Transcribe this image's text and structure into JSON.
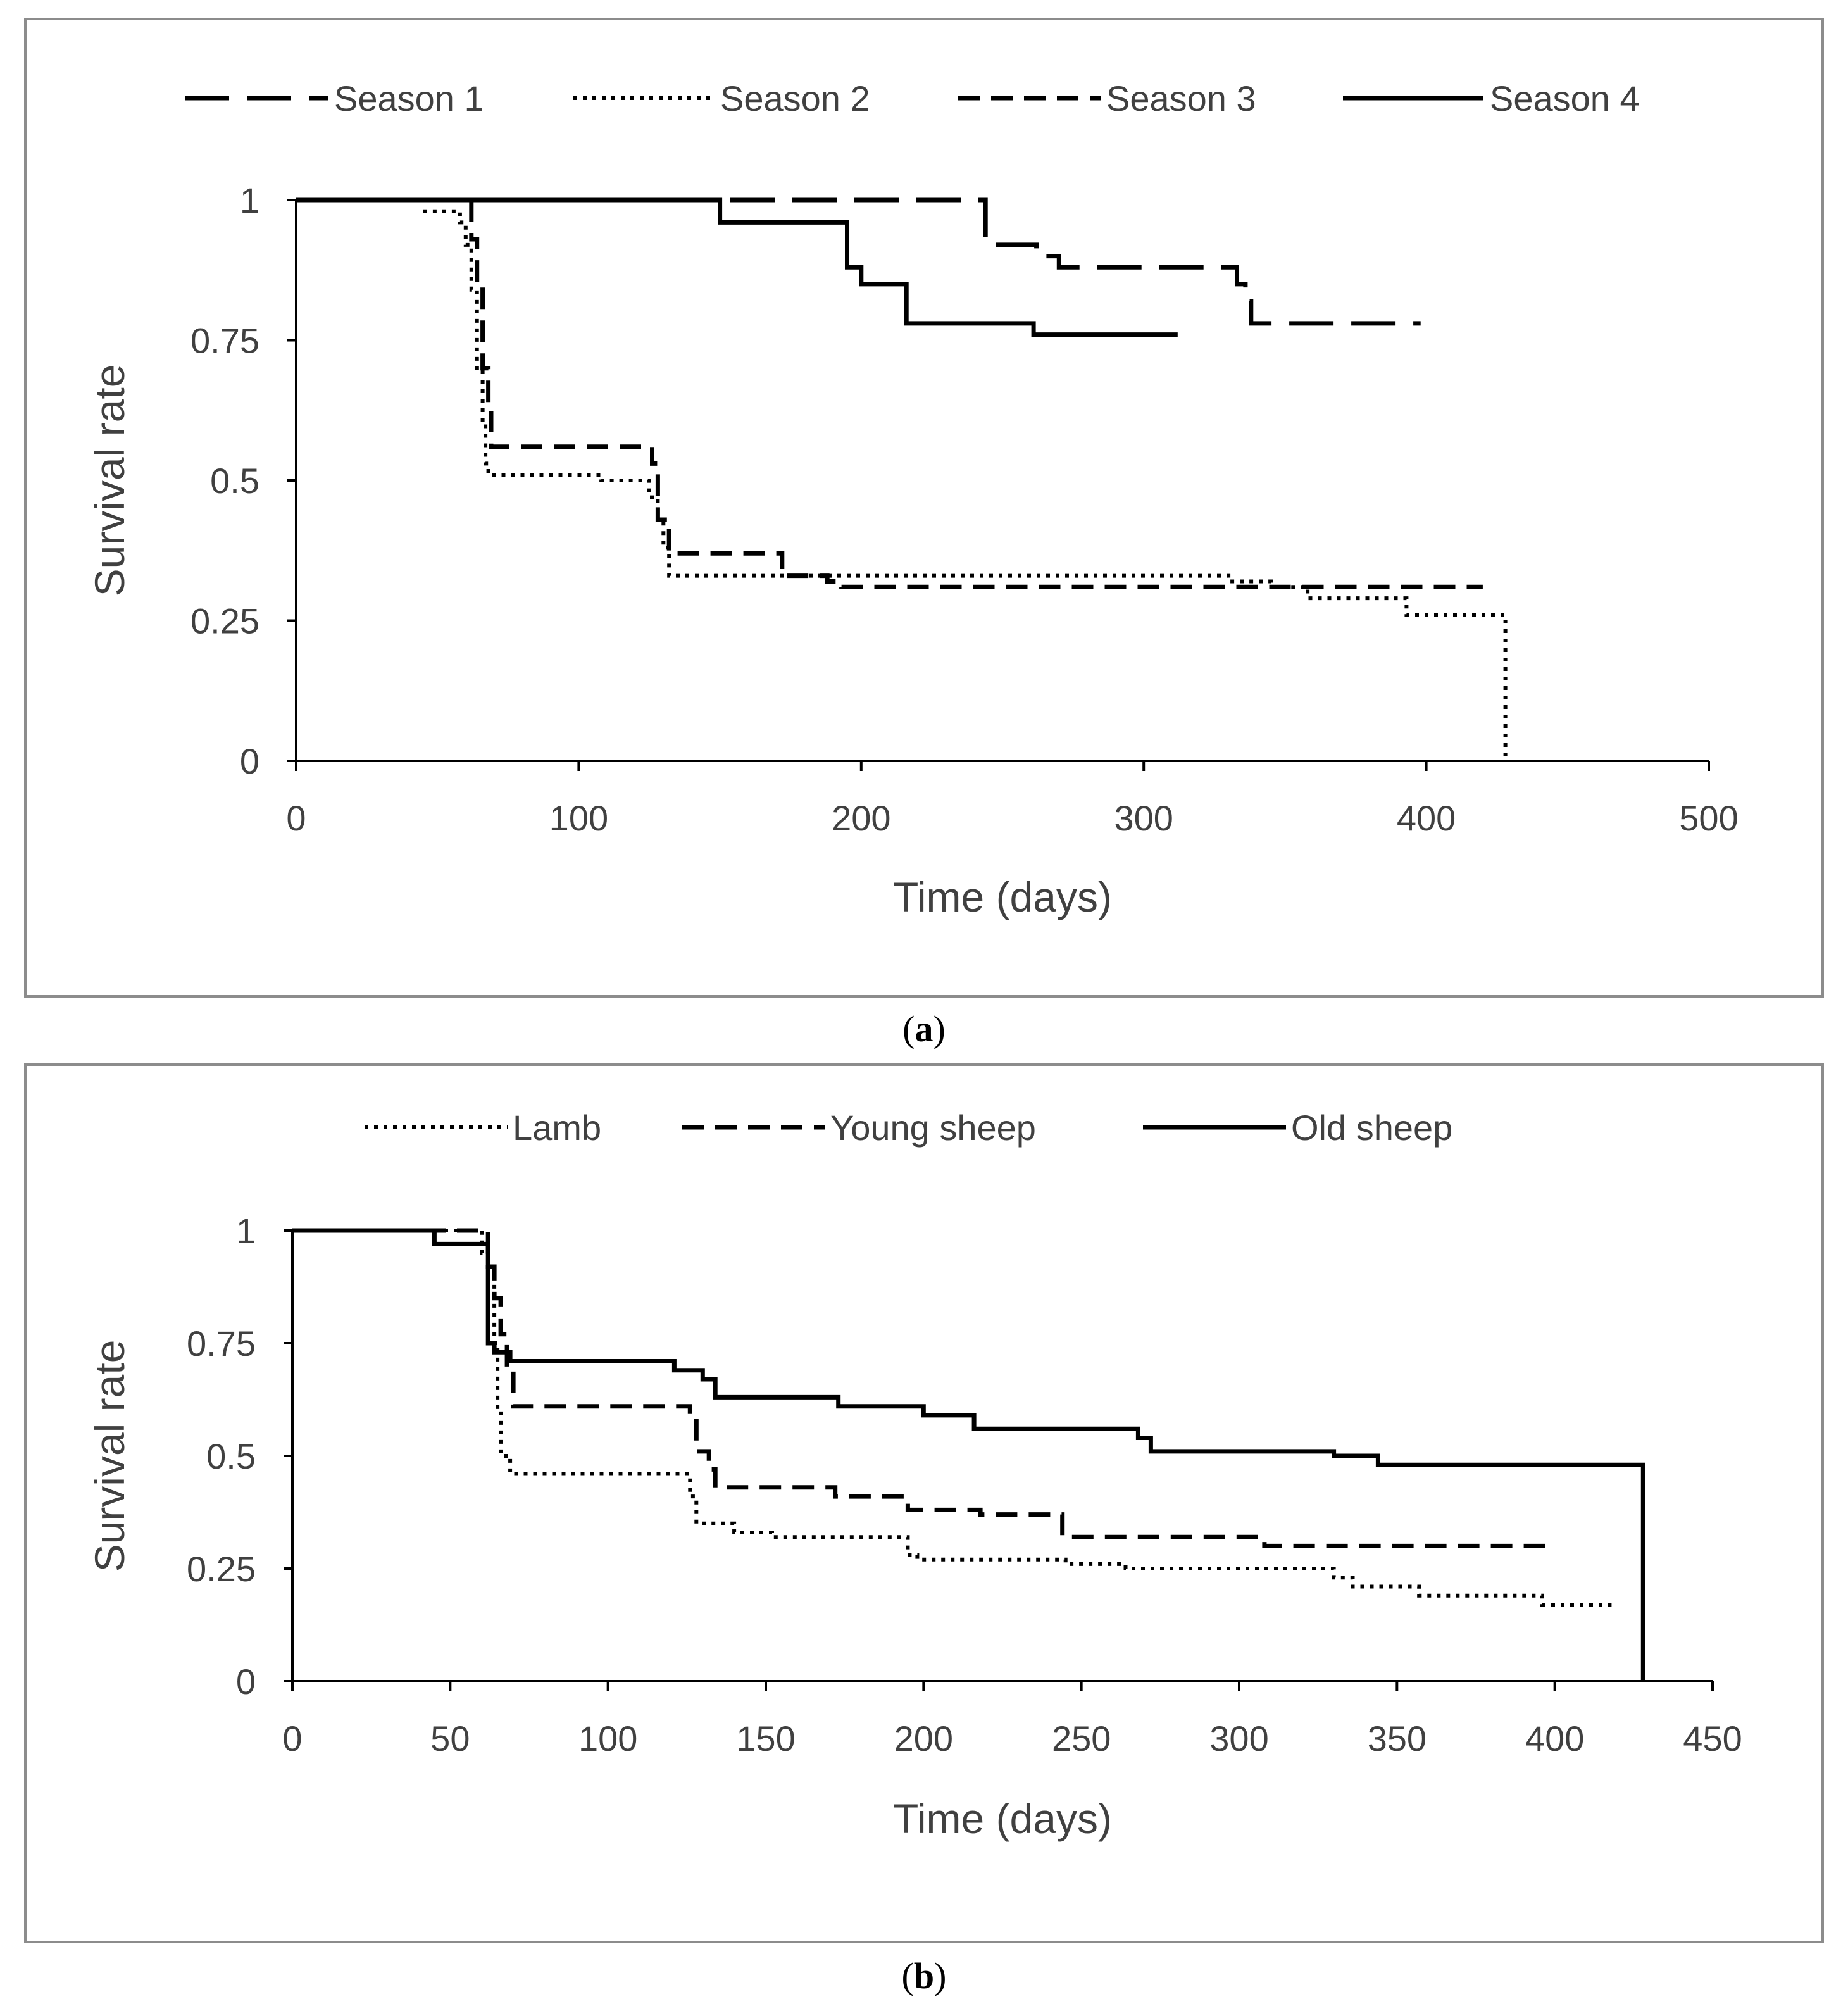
{
  "chart_data": [
    {
      "type": "line",
      "panel_label": "a",
      "xlabel": "Time (days)",
      "ylabel": "Survival rate",
      "xlim": [
        0,
        500
      ],
      "ylim": [
        0,
        1
      ],
      "x_ticks": [
        "0",
        "100",
        "200",
        "300",
        "400",
        "500"
      ],
      "y_ticks": [
        "0",
        "0.25",
        "0.5",
        "0.75",
        "1"
      ],
      "x_tick_values": [
        0,
        100,
        200,
        300,
        400,
        500
      ],
      "y_tick_values": [
        0,
        0.25,
        0.5,
        0.75,
        1
      ],
      "legend_position": "top",
      "series": [
        {
          "name": "Season 1",
          "style": "longdash",
          "points": [
            [
              0,
              1
            ],
            [
              244,
              1
            ],
            [
              244,
              0.92
            ],
            [
              262,
              0.92
            ],
            [
              262,
              0.9
            ],
            [
              270,
              0.9
            ],
            [
              270,
              0.88
            ],
            [
              333,
              0.88
            ],
            [
              333,
              0.85
            ],
            [
              336,
              0.85
            ],
            [
              336,
              0.82
            ],
            [
              338,
              0.82
            ],
            [
              338,
              0.78
            ],
            [
              398,
              0.78
            ]
          ]
        },
        {
          "name": "Season 2",
          "style": "dotted",
          "points": [
            [
              45,
              0.98
            ],
            [
              58,
              0.98
            ],
            [
              58,
              0.96
            ],
            [
              60,
              0.96
            ],
            [
              60,
              0.92
            ],
            [
              62,
              0.92
            ],
            [
              62,
              0.84
            ],
            [
              64,
              0.84
            ],
            [
              64,
              0.7
            ],
            [
              66,
              0.7
            ],
            [
              66,
              0.6
            ],
            [
              67,
              0.6
            ],
            [
              67,
              0.53
            ],
            [
              68,
              0.53
            ],
            [
              68,
              0.51
            ],
            [
              108,
              0.51
            ],
            [
              108,
              0.5
            ],
            [
              125,
              0.5
            ],
            [
              125,
              0.47
            ],
            [
              128,
              0.47
            ],
            [
              128,
              0.43
            ],
            [
              130,
              0.43
            ],
            [
              130,
              0.38
            ],
            [
              132,
              0.38
            ],
            [
              132,
              0.33
            ],
            [
              330,
              0.33
            ],
            [
              330,
              0.32
            ],
            [
              345,
              0.32
            ],
            [
              345,
              0.31
            ],
            [
              358,
              0.31
            ],
            [
              358,
              0.29
            ],
            [
              393,
              0.29
            ],
            [
              393,
              0.26
            ],
            [
              428,
              0.26
            ],
            [
              428,
              0
            ]
          ]
        },
        {
          "name": "Season 3",
          "style": "dashed",
          "points": [
            [
              62,
              1
            ],
            [
              62,
              0.93
            ],
            [
              64,
              0.93
            ],
            [
              64,
              0.85
            ],
            [
              66,
              0.85
            ],
            [
              66,
              0.7
            ],
            [
              68,
              0.7
            ],
            [
              68,
              0.62
            ],
            [
              69,
              0.62
            ],
            [
              69,
              0.56
            ],
            [
              126,
              0.56
            ],
            [
              126,
              0.53
            ],
            [
              128,
              0.53
            ],
            [
              128,
              0.43
            ],
            [
              132,
              0.43
            ],
            [
              132,
              0.37
            ],
            [
              172,
              0.37
            ],
            [
              172,
              0.33
            ],
            [
              188,
              0.33
            ],
            [
              188,
              0.32
            ],
            [
              193,
              0.32
            ],
            [
              193,
              0.31
            ],
            [
              420,
              0.31
            ]
          ]
        },
        {
          "name": "Season 4",
          "style": "solid",
          "points": [
            [
              0,
              1
            ],
            [
              150,
              1
            ],
            [
              150,
              0.96
            ],
            [
              195,
              0.96
            ],
            [
              195,
              0.88
            ],
            [
              200,
              0.88
            ],
            [
              200,
              0.85
            ],
            [
              216,
              0.85
            ],
            [
              216,
              0.78
            ],
            [
              261,
              0.78
            ],
            [
              261,
              0.76
            ],
            [
              312,
              0.76
            ]
          ]
        }
      ]
    },
    {
      "type": "line",
      "panel_label": "b",
      "xlabel": "Time (days)",
      "ylabel": "Survival rate",
      "xlim": [
        0,
        450
      ],
      "ylim": [
        0,
        1
      ],
      "x_ticks": [
        "0",
        "50",
        "100",
        "150",
        "200",
        "250",
        "300",
        "350",
        "400",
        "450"
      ],
      "y_ticks": [
        "0",
        "0.25",
        "0.5",
        "0.75",
        "1"
      ],
      "x_tick_values": [
        0,
        50,
        100,
        150,
        200,
        250,
        300,
        350,
        400,
        450
      ],
      "y_tick_values": [
        0,
        0.25,
        0.5,
        0.75,
        1
      ],
      "legend_position": "top",
      "series": [
        {
          "name": "Lamb",
          "style": "dotted",
          "points": [
            [
              0,
              1
            ],
            [
              60,
              1
            ],
            [
              60,
              0.95
            ],
            [
              62,
              0.95
            ],
            [
              62,
              0.88
            ],
            [
              64,
              0.88
            ],
            [
              64,
              0.75
            ],
            [
              65,
              0.75
            ],
            [
              65,
              0.6
            ],
            [
              66,
              0.6
            ],
            [
              66,
              0.5
            ],
            [
              69,
              0.5
            ],
            [
              69,
              0.46
            ],
            [
              126,
              0.46
            ],
            [
              126,
              0.41
            ],
            [
              128,
              0.41
            ],
            [
              128,
              0.35
            ],
            [
              140,
              0.35
            ],
            [
              140,
              0.33
            ],
            [
              152,
              0.33
            ],
            [
              152,
              0.32
            ],
            [
              195,
              0.32
            ],
            [
              195,
              0.28
            ],
            [
              198,
              0.28
            ],
            [
              198,
              0.27
            ],
            [
              245,
              0.27
            ],
            [
              245,
              0.26
            ],
            [
              264,
              0.26
            ],
            [
              264,
              0.25
            ],
            [
              330,
              0.25
            ],
            [
              330,
              0.23
            ],
            [
              336,
              0.23
            ],
            [
              336,
              0.21
            ],
            [
              357,
              0.21
            ],
            [
              357,
              0.19
            ],
            [
              396,
              0.19
            ],
            [
              396,
              0.17
            ],
            [
              418,
              0.17
            ]
          ]
        },
        {
          "name": "Young sheep",
          "style": "dashed",
          "points": [
            [
              0,
              1
            ],
            [
              62,
              1
            ],
            [
              62,
              0.92
            ],
            [
              64,
              0.92
            ],
            [
              64,
              0.85
            ],
            [
              66,
              0.85
            ],
            [
              66,
              0.77
            ],
            [
              68,
              0.77
            ],
            [
              68,
              0.69
            ],
            [
              70,
              0.69
            ],
            [
              70,
              0.61
            ],
            [
              126,
              0.61
            ],
            [
              126,
              0.59
            ],
            [
              128,
              0.59
            ],
            [
              128,
              0.51
            ],
            [
              132,
              0.51
            ],
            [
              132,
              0.47
            ],
            [
              134,
              0.47
            ],
            [
              134,
              0.43
            ],
            [
              172,
              0.43
            ],
            [
              172,
              0.41
            ],
            [
              195,
              0.41
            ],
            [
              195,
              0.38
            ],
            [
              218,
              0.38
            ],
            [
              218,
              0.37
            ],
            [
              244,
              0.37
            ],
            [
              244,
              0.32
            ],
            [
              308,
              0.32
            ],
            [
              308,
              0.3
            ],
            [
              397,
              0.3
            ]
          ]
        },
        {
          "name": "Old sheep",
          "style": "solid",
          "points": [
            [
              0,
              1
            ],
            [
              45,
              1
            ],
            [
              45,
              0.97
            ],
            [
              62,
              0.97
            ],
            [
              62,
              0.75
            ],
            [
              64,
              0.75
            ],
            [
              64,
              0.73
            ],
            [
              69,
              0.73
            ],
            [
              69,
              0.71
            ],
            [
              121,
              0.71
            ],
            [
              121,
              0.69
            ],
            [
              130,
              0.69
            ],
            [
              130,
              0.67
            ],
            [
              134,
              0.67
            ],
            [
              134,
              0.63
            ],
            [
              173,
              0.63
            ],
            [
              173,
              0.61
            ],
            [
              200,
              0.61
            ],
            [
              200,
              0.59
            ],
            [
              216,
              0.59
            ],
            [
              216,
              0.56
            ],
            [
              268,
              0.56
            ],
            [
              268,
              0.54
            ],
            [
              272,
              0.54
            ],
            [
              272,
              0.51
            ],
            [
              330,
              0.51
            ],
            [
              330,
              0.5
            ],
            [
              344,
              0.5
            ],
            [
              344,
              0.48
            ],
            [
              428,
              0.48
            ],
            [
              428,
              0
            ]
          ]
        }
      ]
    }
  ]
}
